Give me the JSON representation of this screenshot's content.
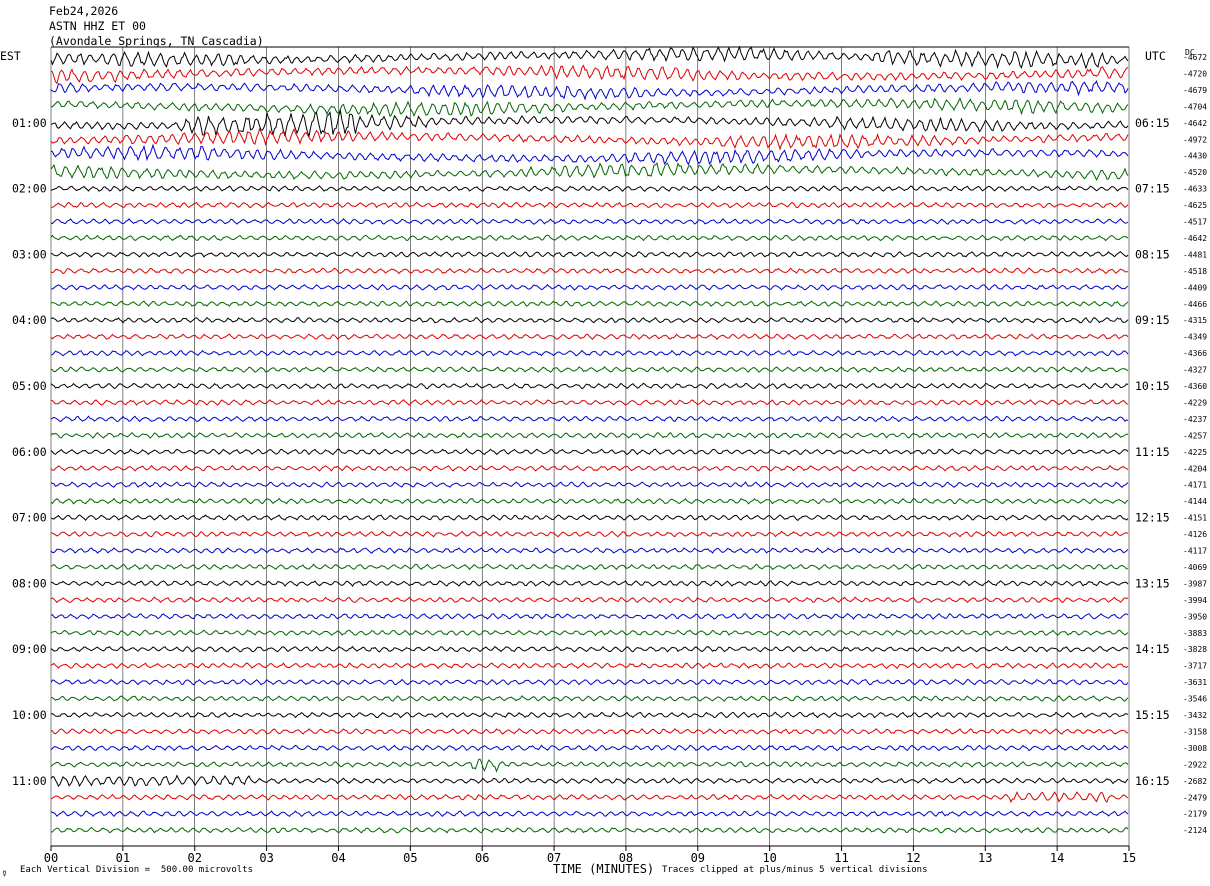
{
  "header": {
    "date": "Feb24,2026",
    "station": "ASTN HHZ ET 00",
    "location": "(Avondale Springs, TN Cascadia)"
  },
  "left_timezone": "EST",
  "right_timezone": "UTC",
  "dc_label": "DC",
  "footer": {
    "symbol": "☿",
    "scale_text": "Each Vertical Division =  500.00 microvolts",
    "x_axis_title": "TIME (MINUTES)",
    "clip_text": "Traces clipped at plus/minus 5 vertical divisions"
  },
  "colors": {
    "trace_cycle": [
      "#000000",
      "#dd0000",
      "#0000cc",
      "#006600"
    ],
    "grid": "#000000",
    "background": "#ffffff"
  },
  "chart_data": {
    "type": "line",
    "title": "Feb24,2026 ASTN HHZ ET 00 (Avondale Springs, TN Cascadia)",
    "xlabel": "TIME (MINUTES)",
    "xlim": [
      0,
      15
    ],
    "x_ticks": [
      "00",
      "01",
      "02",
      "03",
      "04",
      "05",
      "06",
      "07",
      "08",
      "09",
      "10",
      "11",
      "12",
      "13",
      "14",
      "15"
    ],
    "num_traces": 48,
    "minutes_per_trace": 15,
    "left_hour_labels": [
      "01:00",
      "02:00",
      "03:00",
      "04:00",
      "05:00",
      "06:00",
      "07:00",
      "08:00",
      "09:00",
      "10:00",
      "11:00"
    ],
    "right_hour_labels": [
      "06:15",
      "07:15",
      "08:15",
      "09:15",
      "10:15",
      "11:15",
      "12:15",
      "13:15",
      "14:15",
      "15:15",
      "16:15"
    ],
    "dc_offsets": [
      -4672,
      -4720,
      -4679,
      -4704,
      -4642,
      -4972,
      -4430,
      -4520,
      -4633,
      -4625,
      -4517,
      -4642,
      -4481,
      -4518,
      -4409,
      -4466,
      -4315,
      -4349,
      -4366,
      -4327,
      -4360,
      -4229,
      -4237,
      -4257,
      -4225,
      -4204,
      -4171,
      -4144,
      -4151,
      -4126,
      -4117,
      -4069,
      -3987,
      -3994,
      -3950,
      -3883,
      -3828,
      -3717,
      -3631,
      -3546,
      -3432,
      -3158,
      -3008,
      -2922,
      -2682,
      -2479,
      -2179,
      -2124
    ],
    "scale_microvolts_per_division": 500.0,
    "clip_divisions": 5,
    "grid": true
  }
}
